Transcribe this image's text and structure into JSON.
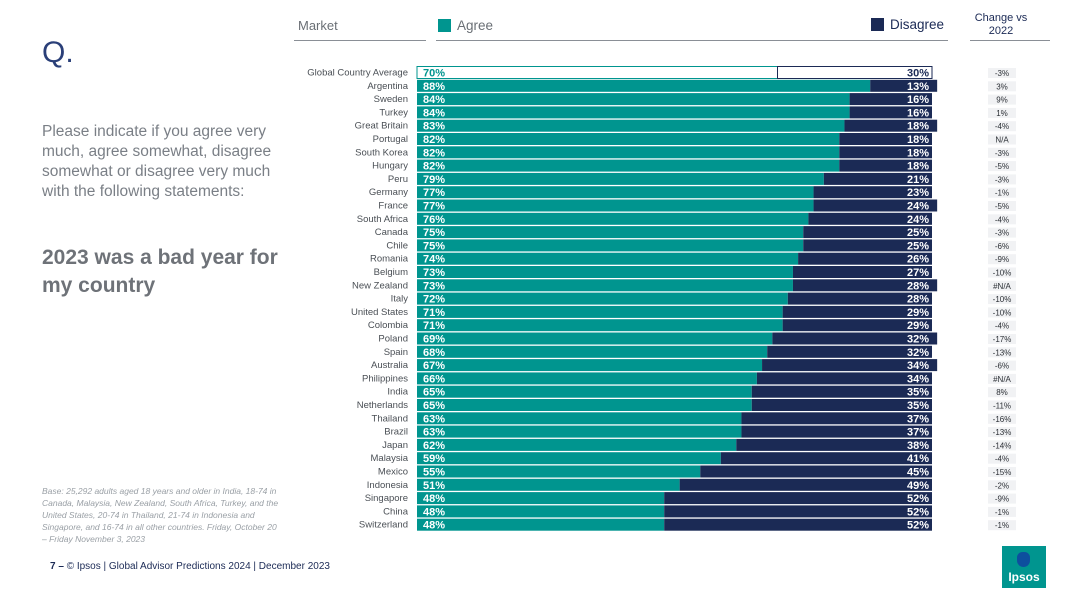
{
  "slide": {
    "q_mark": "Q.",
    "question": "Please indicate if you agree very much, agree somewhat, disagree somewhat or disagree very much with the following statements:",
    "statement": "2023 was a bad year for my country",
    "base_note": "Base: 25,292 adults aged 18 years and older in India, 18-74 in Canada, Malaysia, New Zealand, South Africa, Turkey, and the United States, 20-74 in Thailand, 21-74 in Indonesia and Singapore, and 16-74 in all other countries. Friday, October 20 – Friday November 3, 2023",
    "footer_page": "7",
    "footer_dash": " – ",
    "footer_text": "© Ipsos | Global Advisor Predictions 2024 | December 2023",
    "logo_text": "Ipsos"
  },
  "headers": {
    "market": "Market",
    "agree": "Agree",
    "disagree": "Disagree",
    "change": "Change vs 2022"
  },
  "colors": {
    "agree": "#00958f",
    "disagree": "#1b2a55",
    "global_agree": "#ffffff"
  },
  "chart_data": {
    "type": "bar",
    "stacked": true,
    "orientation": "horizontal",
    "title": "2023 was a bad year for my country",
    "series": [
      {
        "name": "Agree",
        "values": [
          70,
          88,
          84,
          84,
          83,
          82,
          82,
          82,
          79,
          77,
          77,
          76,
          75,
          75,
          74,
          73,
          73,
          72,
          71,
          71,
          69,
          68,
          67,
          66,
          65,
          65,
          63,
          63,
          62,
          59,
          55,
          51,
          48,
          48,
          48
        ]
      },
      {
        "name": "Disagree",
        "values": [
          30,
          13,
          16,
          16,
          18,
          18,
          18,
          18,
          21,
          23,
          24,
          24,
          25,
          25,
          26,
          27,
          28,
          28,
          29,
          29,
          32,
          32,
          34,
          34,
          35,
          35,
          37,
          37,
          38,
          41,
          45,
          49,
          52,
          52,
          52
        ]
      }
    ],
    "categories": [
      "Global Country Average",
      "Argentina",
      "Sweden",
      "Turkey",
      "Great Britain",
      "Portugal",
      "South Korea",
      "Hungary",
      "Peru",
      "Germany",
      "France",
      "South Africa",
      "Canada",
      "Chile",
      "Romania",
      "Belgium",
      "New Zealand",
      "Italy",
      "United States",
      "Colombia",
      "Poland",
      "Spain",
      "Australia",
      "Philippines",
      "India",
      "Netherlands",
      "Thailand",
      "Brazil",
      "Japan",
      "Malaysia",
      "Mexico",
      "Indonesia",
      "Singapore",
      "China",
      "Switzerland"
    ],
    "agree_labels": [
      "70%",
      "88%",
      "84%",
      "84%",
      "83%",
      "82%",
      "82%",
      "82%",
      "79%",
      "77%",
      "77%",
      "76%",
      "75%",
      "75%",
      "74%",
      "73%",
      "73%",
      "72%",
      "71%",
      "71%",
      "69%",
      "68%",
      "67%",
      "66%",
      "65%",
      "65%",
      "63%",
      "63%",
      "62%",
      "59%",
      "55%",
      "51%",
      "48%",
      "48%",
      "48%"
    ],
    "disagree_labels": [
      "30%",
      "13%",
      "16%",
      "16%",
      "18%",
      "18%",
      "18%",
      "18%",
      "21%",
      "23%",
      "24%",
      "24%",
      "25%",
      "25%",
      "26%",
      "27%",
      "28%",
      "28%",
      "29%",
      "29%",
      "32%",
      "32%",
      "34%",
      "34%",
      "35%",
      "35%",
      "37%",
      "37%",
      "38%",
      "41%",
      "45%",
      "49%",
      "52%",
      "52%",
      "52%"
    ],
    "change_vs_2022": [
      "-3%",
      "3%",
      "9%",
      "1%",
      "-4%",
      "N/A",
      "-3%",
      "-5%",
      "-3%",
      "-1%",
      "-5%",
      "-4%",
      "-3%",
      "-6%",
      "-9%",
      "-10%",
      "#N/A",
      "-10%",
      "-10%",
      "-4%",
      "-17%",
      "-13%",
      "-6%",
      "#N/A",
      "8%",
      "-11%",
      "-16%",
      "-13%",
      "-14%",
      "-4%",
      "-15%",
      "-2%",
      "-9%",
      "-1%",
      "-1%"
    ],
    "xlim": [
      0,
      100
    ]
  }
}
